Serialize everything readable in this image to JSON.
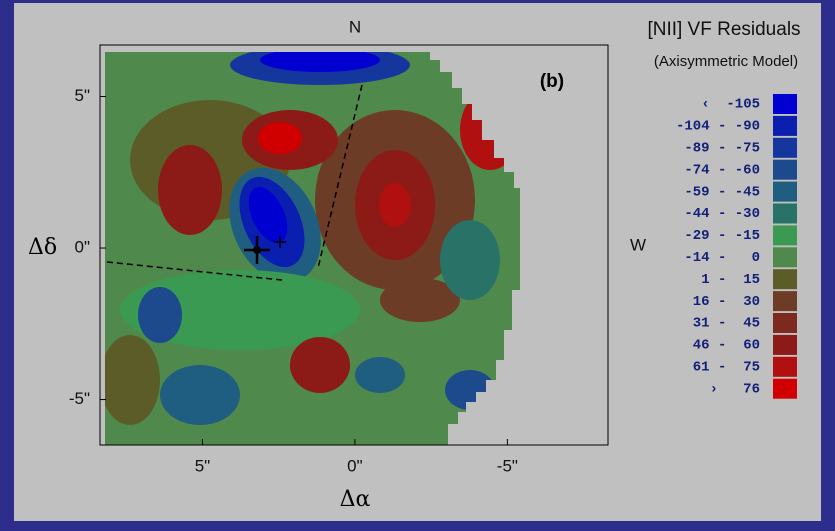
{
  "chart_data": {
    "type": "contour-map",
    "title": "[NII] VF Residuals",
    "subtitle": "(Axisymmetric Model)",
    "panel_label": "(b)",
    "north_label": "N",
    "west_label": "W",
    "xlabel": "Δα",
    "ylabel": "Δδ",
    "xlim": [
      8.36,
      -8.3
    ],
    "ylim": [
      -6.5,
      6.7
    ],
    "xticks": [
      {
        "value": 5,
        "label": "5\""
      },
      {
        "value": 0,
        "label": "0\""
      },
      {
        "value": -5,
        "label": "-5\""
      }
    ],
    "yticks": [
      {
        "value": 5,
        "label": "5\""
      },
      {
        "value": 0,
        "label": "0\""
      },
      {
        "value": -5,
        "label": "-5\""
      }
    ],
    "legend": [
      {
        "label": "‹  -105",
        "color": "#0000d0"
      },
      {
        "label": "-104 - -90",
        "color": "#0a1eb0"
      },
      {
        "label": "-89 - -75",
        "color": "#15369c"
      },
      {
        "label": "-74 - -60",
        "color": "#1c4a8c"
      },
      {
        "label": "-59 - -45",
        "color": "#1f5e80"
      },
      {
        "label": "-44 - -30",
        "color": "#287268"
      },
      {
        "label": "-29 - -15",
        "color": "#3a9a52"
      },
      {
        "label": "-14 -   0",
        "color": "#4f8a4c"
      },
      {
        "label": "1 -  15",
        "color": "#5c5c28"
      },
      {
        "label": "16 -  30",
        "color": "#6c3c26"
      },
      {
        "label": "31 -  45",
        "color": "#7c2a1e"
      },
      {
        "label": "46 -  60",
        "color": "#8c1a16"
      },
      {
        "label": "61 -  75",
        "color": "#b01010"
      },
      {
        "label": "›   76",
        "color": "#d00000"
      }
    ]
  }
}
